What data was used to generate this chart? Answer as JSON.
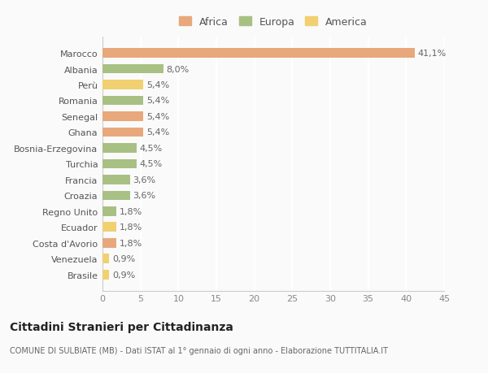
{
  "categories": [
    "Brasile",
    "Venezuela",
    "Costa d'Avorio",
    "Ecuador",
    "Regno Unito",
    "Croazia",
    "Francia",
    "Turchia",
    "Bosnia-Erzegovina",
    "Ghana",
    "Senegal",
    "Romania",
    "Perù",
    "Albania",
    "Marocco"
  ],
  "values": [
    0.9,
    0.9,
    1.8,
    1.8,
    1.8,
    3.6,
    3.6,
    4.5,
    4.5,
    5.4,
    5.4,
    5.4,
    5.4,
    8.0,
    41.1
  ],
  "bar_colors": [
    "#F0D070",
    "#F0D070",
    "#E8A87C",
    "#F0D070",
    "#A8C084",
    "#A8C084",
    "#A8C084",
    "#A8C084",
    "#A8C084",
    "#E8A87C",
    "#E8A87C",
    "#A8C084",
    "#F0D070",
    "#A8C084",
    "#E8A87C"
  ],
  "labels": [
    "0,9%",
    "0,9%",
    "1,8%",
    "1,8%",
    "1,8%",
    "3,6%",
    "3,6%",
    "4,5%",
    "4,5%",
    "5,4%",
    "5,4%",
    "5,4%",
    "5,4%",
    "8,0%",
    "41,1%"
  ],
  "xlim": [
    0,
    45
  ],
  "xticks": [
    0,
    5,
    10,
    15,
    20,
    25,
    30,
    35,
    40,
    45
  ],
  "title": "Cittadini Stranieri per Cittadinanza",
  "subtitle": "COMUNE DI SULBIATE (MB) - Dati ISTAT al 1° gennaio di ogni anno - Elaborazione TUTTITALIA.IT",
  "legend_labels": [
    "Africa",
    "Europa",
    "America"
  ],
  "legend_colors": [
    "#E8A87C",
    "#A8C084",
    "#F0D070"
  ],
  "background_color": "#FAFAFA",
  "grid_color": "#FFFFFF",
  "bar_height": 0.6,
  "label_fontsize": 8,
  "tick_fontsize": 8,
  "ytick_fontsize": 8,
  "legend_fontsize": 9
}
